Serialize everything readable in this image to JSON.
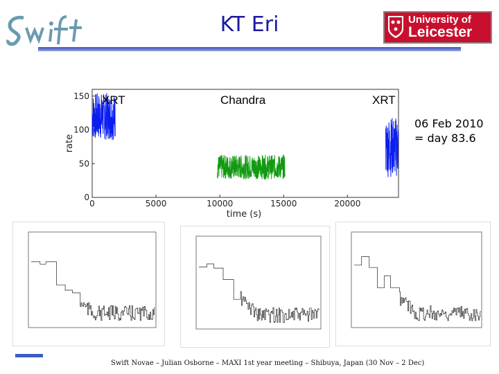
{
  "title": "KT Eri",
  "logos": {
    "swift": "Swift",
    "university_line1": "University of",
    "university_line2": "Leicester"
  },
  "lightcurve": {
    "segment_labels": [
      "XRT",
      "Chandra",
      "XRT"
    ],
    "xlabel": "time (s)",
    "ylabel": "rate",
    "x_ticks": [
      "0",
      "5000",
      "10000",
      "15000",
      "20000"
    ],
    "y_ticks": [
      "0",
      "50",
      "100",
      "150"
    ],
    "colors": {
      "xrt": "#0a1ef0",
      "chandra": "#129a12"
    }
  },
  "annotation": {
    "line1": "06 Feb 2010",
    "line2": "= day 83.6"
  },
  "footer": "Swift Novae – Julian Osborne – MAXI 1st year meeting – Shibuya, Japan (30 Nov – 2 Dec)",
  "chart_data": {
    "type": "scatter",
    "xlabel": "time (s)",
    "ylabel": "rate",
    "xlim": [
      0,
      24000
    ],
    "ylim": [
      0,
      160
    ],
    "series": [
      {
        "name": "XRT",
        "x_range": [
          0,
          1800
        ],
        "level": 120,
        "spread": 35
      },
      {
        "name": "Chandra",
        "x_range": [
          9800,
          15100
        ],
        "level": 45,
        "spread": 18
      },
      {
        "name": "XRT",
        "x_range": [
          23000,
          24500
        ],
        "level": 75,
        "spread": 45
      }
    ]
  }
}
